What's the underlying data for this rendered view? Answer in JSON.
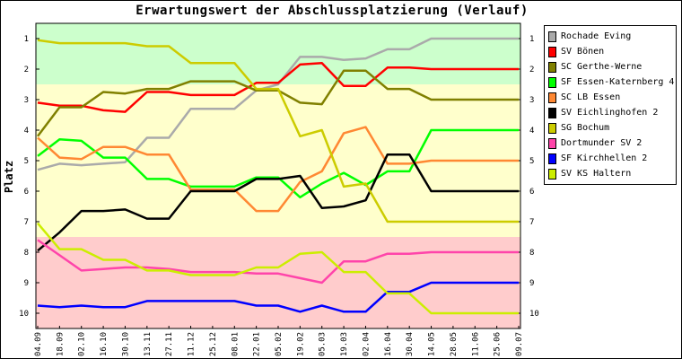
{
  "chart_data": {
    "type": "line",
    "title": "Erwartungswert der Abschlussplatzierung (Verlauf)",
    "xlabel": "",
    "ylabel": "Platz",
    "ylim": [
      10.5,
      0.5
    ],
    "y_ticks": [
      "1",
      "2",
      "3",
      "4",
      "5",
      "6",
      "7",
      "8",
      "9",
      "10"
    ],
    "grid": false,
    "legend_position": "right",
    "zones": [
      {
        "from": 0.5,
        "to": 2.5,
        "color": "#ccffcc"
      },
      {
        "from": 2.5,
        "to": 7.5,
        "color": "#ffffcc"
      },
      {
        "from": 7.5,
        "to": 10.5,
        "color": "#ffcccc"
      }
    ],
    "categories": [
      "04.09",
      "18.09",
      "02.10",
      "16.10",
      "30.10",
      "13.11",
      "27.11",
      "11.12",
      "25.12",
      "08.01",
      "22.01",
      "05.02",
      "19.02",
      "05.03",
      "19.03",
      "02.04",
      "16.04",
      "30.04",
      "14.05",
      "28.05",
      "11.06",
      "25.06",
      "09.07"
    ],
    "series": [
      {
        "name": "Rochade Eving",
        "color": "#aaaaaa",
        "values": [
          5.3,
          5.1,
          5.15,
          5.1,
          5.05,
          4.25,
          4.25,
          3.3,
          3.3,
          3.3,
          2.7,
          2.5,
          1.6,
          1.6,
          1.7,
          1.65,
          1.35,
          1.35,
          1.0,
          1.0,
          1.0,
          1.0,
          1.0
        ]
      },
      {
        "name": "SV Bönen",
        "color": "#ff0000",
        "values": [
          3.1,
          3.2,
          3.2,
          3.35,
          3.4,
          2.75,
          2.75,
          2.85,
          2.85,
          2.85,
          2.45,
          2.45,
          1.85,
          1.8,
          2.55,
          2.55,
          1.95,
          1.95,
          2.0,
          2.0,
          2.0,
          2.0,
          2.0
        ]
      },
      {
        "name": "SC Gerthe-Werne",
        "color": "#808000",
        "values": [
          4.2,
          3.25,
          3.25,
          2.75,
          2.8,
          2.65,
          2.65,
          2.4,
          2.4,
          2.4,
          2.7,
          2.7,
          3.1,
          3.15,
          2.05,
          2.05,
          2.65,
          2.65,
          3.0,
          3.0,
          3.0,
          3.0,
          3.0
        ]
      },
      {
        "name": "SF Essen-Katernberg 4",
        "color": "#00ff00",
        "values": [
          4.85,
          4.3,
          4.35,
          4.9,
          4.9,
          5.6,
          5.6,
          5.85,
          5.85,
          5.85,
          5.55,
          5.55,
          6.2,
          5.75,
          5.4,
          5.8,
          5.35,
          5.35,
          4.0,
          4.0,
          4.0,
          4.0,
          4.0
        ]
      },
      {
        "name": "SC LB Essen",
        "color": "#ff8833",
        "values": [
          4.25,
          4.9,
          4.95,
          4.55,
          4.55,
          4.8,
          4.8,
          5.95,
          5.95,
          5.95,
          6.65,
          6.65,
          5.7,
          5.35,
          4.1,
          3.9,
          5.1,
          5.1,
          5.0,
          5.0,
          5.0,
          5.0,
          5.0
        ]
      },
      {
        "name": "SV Eichlinghofen 2",
        "color": "#000000",
        "values": [
          7.95,
          7.35,
          6.65,
          6.65,
          6.6,
          6.9,
          6.9,
          6.0,
          6.0,
          6.0,
          5.6,
          5.6,
          5.5,
          6.55,
          6.5,
          6.3,
          4.8,
          4.8,
          6.0,
          6.0,
          6.0,
          6.0,
          6.0
        ]
      },
      {
        "name": "SG Bochum",
        "color": "#cccc00",
        "values": [
          1.05,
          1.15,
          1.15,
          1.15,
          1.15,
          1.25,
          1.25,
          1.8,
          1.8,
          1.8,
          2.65,
          2.65,
          4.2,
          4.0,
          5.85,
          5.75,
          7.0,
          7.0,
          7.0,
          7.0,
          7.0,
          7.0,
          7.0
        ]
      },
      {
        "name": "Dortmunder SV 2",
        "color": "#ff44aa",
        "values": [
          7.6,
          8.1,
          8.6,
          8.55,
          8.5,
          8.5,
          8.55,
          8.65,
          8.65,
          8.65,
          8.7,
          8.7,
          8.85,
          9.0,
          8.3,
          8.3,
          8.05,
          8.05,
          8.0,
          8.0,
          8.0,
          8.0,
          8.0
        ]
      },
      {
        "name": "SF Kirchhellen 2",
        "color": "#0000ff",
        "values": [
          9.75,
          9.8,
          9.75,
          9.8,
          9.8,
          9.6,
          9.6,
          9.6,
          9.6,
          9.6,
          9.75,
          9.75,
          9.95,
          9.75,
          9.95,
          9.95,
          9.3,
          9.3,
          9.0,
          9.0,
          9.0,
          9.0,
          9.0
        ]
      },
      {
        "name": "SV KS Haltern",
        "color": "#ccee00",
        "values": [
          7.05,
          7.9,
          7.9,
          8.25,
          8.25,
          8.6,
          8.6,
          8.75,
          8.75,
          8.75,
          8.5,
          8.5,
          8.05,
          8.0,
          8.65,
          8.65,
          9.35,
          9.35,
          10.0,
          10.0,
          10.0,
          10.0,
          10.0
        ]
      }
    ]
  }
}
